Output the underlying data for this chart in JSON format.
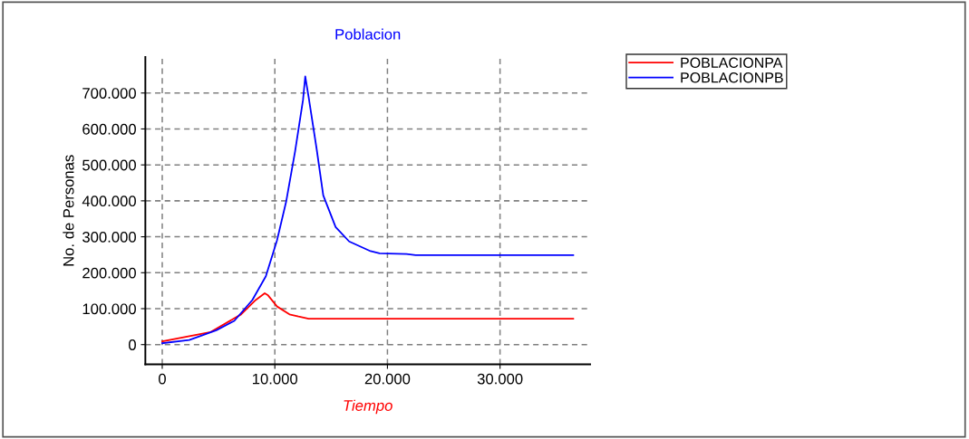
{
  "chart_data": {
    "type": "line",
    "title": "Poblacion",
    "xlabel": "Tiempo",
    "ylabel": "No. de Personas",
    "xlim": [
      -1500,
      38000
    ],
    "ylim": [
      -55000,
      800000
    ],
    "xticks": [
      {
        "value": 0,
        "label": "0"
      },
      {
        "value": 10000,
        "label": "10.000"
      },
      {
        "value": 20000,
        "label": "20.000"
      },
      {
        "value": 30000,
        "label": "30.000"
      }
    ],
    "yticks": [
      {
        "value": 0,
        "label": "0"
      },
      {
        "value": 100000,
        "label": "100.000"
      },
      {
        "value": 200000,
        "label": "200.000"
      },
      {
        "value": 300000,
        "label": "300.000"
      },
      {
        "value": 400000,
        "label": "400.000"
      },
      {
        "value": 500000,
        "label": "500.000"
      },
      {
        "value": 600000,
        "label": "600.000"
      },
      {
        "value": 700000,
        "label": "700.000"
      }
    ],
    "grid": true,
    "legend": "top right",
    "line_style": "solid",
    "series": [
      {
        "name": "POBLACIONPA",
        "color": "#ff0000",
        "x": [
          0,
          4300,
          7000,
          8300,
          9100,
          9400,
          10200,
          11300,
          12100,
          13000,
          20000,
          36500
        ],
        "values": [
          9000,
          35000,
          84000,
          124000,
          143000,
          137000,
          106000,
          84000,
          78000,
          72000,
          72000,
          72000
        ]
      },
      {
        "name": "POBLACIONPB",
        "color": "#0000ff",
        "x": [
          0,
          2400,
          4800,
          6400,
          8000,
          9200,
          10200,
          11000,
          11800,
          12500,
          12700,
          13000,
          13700,
          14300,
          15400,
          16600,
          18500,
          19300,
          21700,
          22500,
          36500
        ],
        "values": [
          4000,
          13000,
          40000,
          66000,
          124000,
          190000,
          291000,
          397000,
          538000,
          680000,
          746000,
          689000,
          547000,
          415000,
          327000,
          287000,
          260000,
          254000,
          252000,
          249000,
          249000
        ]
      }
    ]
  }
}
